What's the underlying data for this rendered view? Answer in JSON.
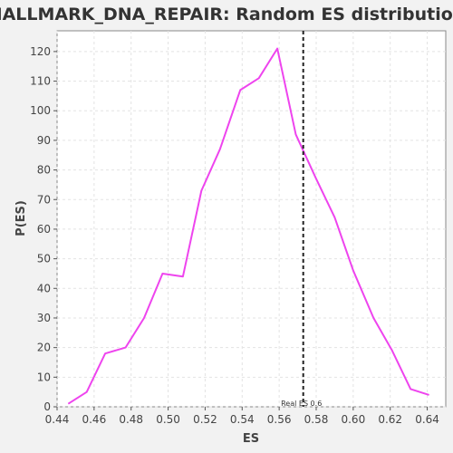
{
  "chart_data": {
    "type": "line",
    "title": "HALLMARK_DNA_REPAIR: Random ES distribution",
    "xlabel": "ES",
    "ylabel": "P(ES)",
    "xlim": [
      0.44,
      0.65
    ],
    "ylim": [
      0,
      127
    ],
    "x_ticks": [
      0.44,
      0.46,
      0.48,
      0.5,
      0.52,
      0.54,
      0.56,
      0.58,
      0.6,
      0.62,
      0.64
    ],
    "x_tick_labels": [
      "0.44",
      "0.46",
      "0.48",
      "0.50",
      "0.52",
      "0.54",
      "0.56",
      "0.58",
      "0.60",
      "0.62",
      "0.64"
    ],
    "y_ticks": [
      0,
      10,
      20,
      30,
      40,
      50,
      60,
      70,
      80,
      90,
      100,
      110,
      120
    ],
    "y_tick_labels": [
      "0",
      "10",
      "20",
      "30",
      "40",
      "50",
      "60",
      "70",
      "80",
      "90",
      "100",
      "110",
      "120"
    ],
    "grid": true,
    "series": [
      {
        "color": "#ee44ee",
        "x": [
          0.446,
          0.456,
          0.466,
          0.477,
          0.487,
          0.497,
          0.508,
          0.518,
          0.528,
          0.539,
          0.549,
          0.559,
          0.569,
          0.58,
          0.59,
          0.6,
          0.611,
          0.621,
          0.631,
          0.641
        ],
        "y": [
          1,
          5,
          18,
          20,
          30,
          45,
          44,
          73,
          87,
          107,
          111,
          121,
          92,
          77,
          64,
          46,
          30,
          19,
          6,
          4
        ]
      }
    ],
    "reference_line": {
      "x": 0.573,
      "label": "Real ES 0.6",
      "color": "#222222"
    }
  }
}
